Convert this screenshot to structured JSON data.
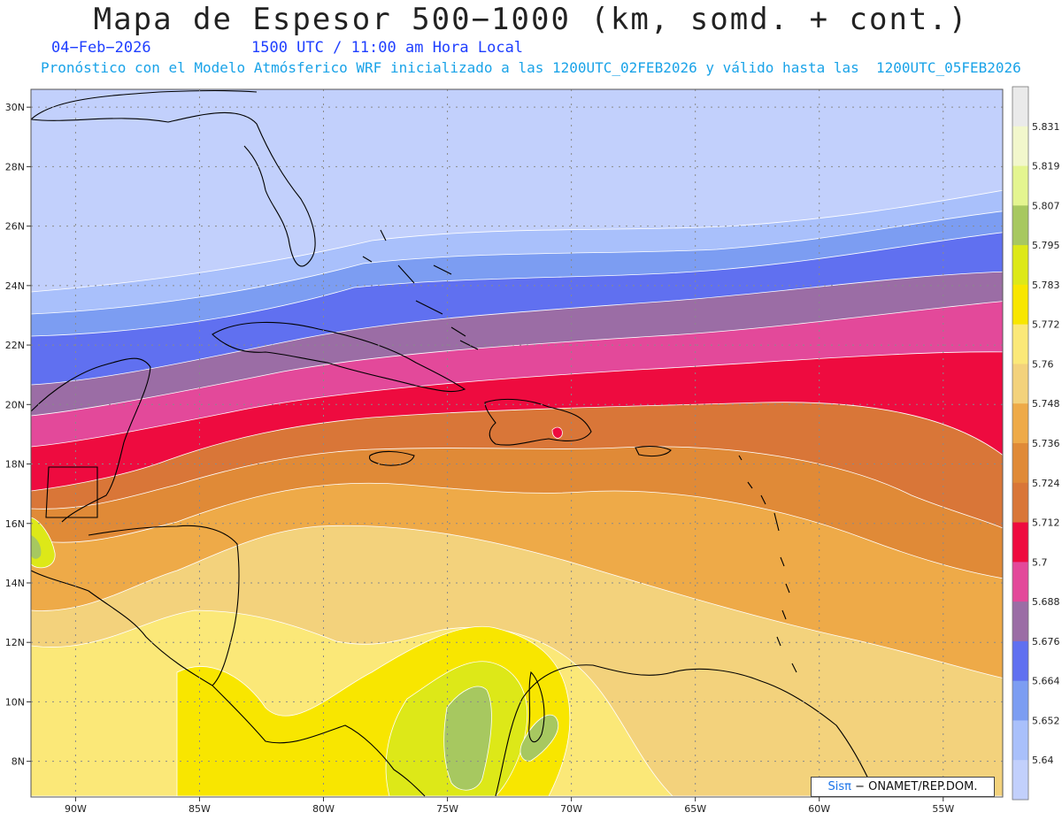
{
  "header": {
    "title": "Mapa de Espesor 500−1000 (km, somd. + cont.)",
    "date": "04−Feb−2026",
    "time": "1500 UTC / 11:00 am Hora Local",
    "forecast": "Pronóstico con el Modelo Atmósferico WRF inicializado a las 1200UTC_02FEB2026 y válido hasta las  1200UTC_05FEB2026"
  },
  "axes": {
    "lat_labels": [
      "30N",
      "28N",
      "26N",
      "24N",
      "22N",
      "20N",
      "18N",
      "16N",
      "14N",
      "12N",
      "10N",
      "8N"
    ],
    "lat_values": [
      30,
      28,
      26,
      24,
      22,
      20,
      18,
      16,
      14,
      12,
      10,
      8
    ],
    "lon_labels": [
      "90W",
      "85W",
      "80W",
      "75W",
      "70W",
      "65W",
      "60W",
      "55W"
    ],
    "lon_values": [
      -90,
      -85,
      -80,
      -75,
      -70,
      -65,
      -60,
      -55
    ],
    "lon_range": [
      -91.8,
      -52.6
    ],
    "lat_range": [
      6.8,
      30.6
    ],
    "grid": "dotted"
  },
  "colorbar": {
    "labels": [
      "5.831",
      "5.819",
      "5.807",
      "5.795",
      "5.783",
      "5.772",
      "5.76",
      "5.748",
      "5.736",
      "5.724",
      "5.712",
      "5.7",
      "5.688",
      "5.676",
      "5.664",
      "5.652",
      "5.64"
    ],
    "colors": [
      "#eaeaea",
      "#f2f7cc",
      "#e4f590",
      "#a7c860",
      "#dde818",
      "#f8e600",
      "#fbe878",
      "#f3d27c",
      "#eeaa48",
      "#e08a37",
      "#d97638",
      "#ee0b3f",
      "#e3499a",
      "#9b6da5",
      "#6070f0",
      "#7c9df2",
      "#a9c0fb",
      "#c2d0fc"
    ]
  },
  "credit": {
    "sis": "Sisπ",
    "rest": " − ONAMET/REP.DOM."
  }
}
